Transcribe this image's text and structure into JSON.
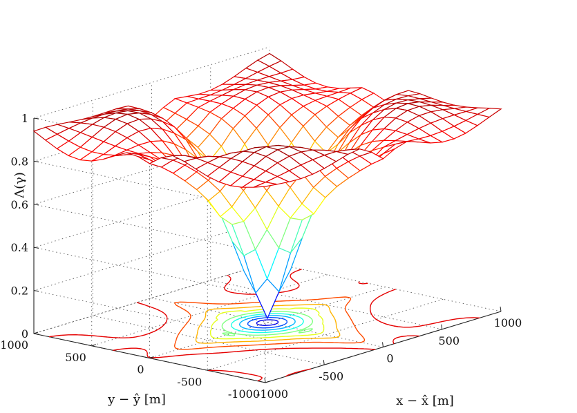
{
  "chart_data": {
    "type": "surface",
    "plot": "3d-mesh with contour projection on floor",
    "xlabel": "x − x̂ [m]",
    "ylabel": "y − ŷ [m]",
    "zlabel": "Λ(γ)",
    "xlim": [
      -1000,
      1000
    ],
    "ylim": [
      -1000,
      1000
    ],
    "zlim": [
      0,
      1
    ],
    "xticks": [
      -1000,
      -500,
      0,
      500,
      1000
    ],
    "yticks": [
      -1000,
      -500,
      0,
      500,
      1000
    ],
    "zticks": [
      0,
      0.2,
      0.4,
      0.6,
      0.8,
      1
    ],
    "grid": true,
    "colormap": "jet",
    "minimum": {
      "x": 0,
      "y": 0,
      "z": 0.02
    },
    "plateau_z": 0.92,
    "mesh": {
      "x": [
        -1000,
        -900,
        -800,
        -700,
        -600,
        -500,
        -400,
        -300,
        -200,
        -100,
        0,
        100,
        200,
        300,
        400,
        500,
        600,
        700,
        800,
        900,
        1000
      ],
      "y": [
        -1000,
        -900,
        -800,
        -700,
        -600,
        -500,
        -400,
        -300,
        -200,
        -100,
        0,
        100,
        200,
        300,
        400,
        500,
        600,
        700,
        800,
        900,
        1000
      ]
    },
    "contour_levels": [
      0.1,
      0.2,
      0.3,
      0.4,
      0.5,
      0.6,
      0.7,
      0.8,
      0.9
    ]
  }
}
